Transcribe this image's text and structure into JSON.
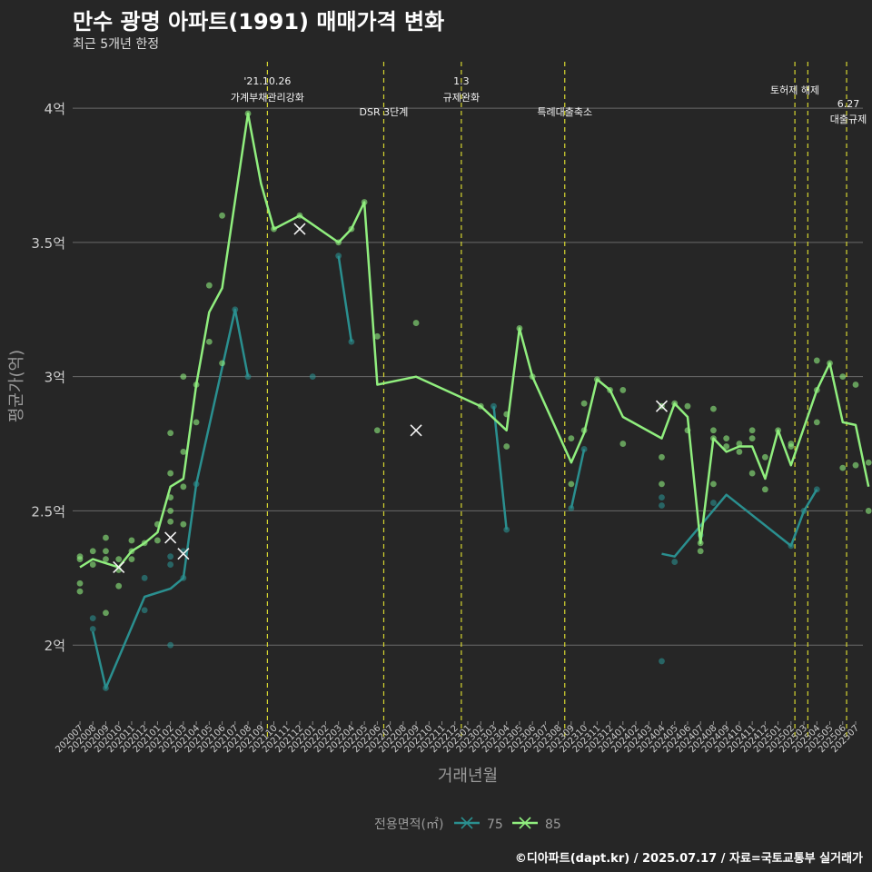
{
  "title": "만수 광명 아파트(1991) 매매가격 변화",
  "subtitle": "최근 5개년 한정",
  "caption": "©디아파트(dapt.kr) / 2025.07.17 / 자료=국토교통부 실거래가",
  "chart_data": {
    "type": "line",
    "xlabel": "거래년월",
    "ylabel": "평균가(억)",
    "legend_title": "전용면적(㎡)",
    "legend_position": "bottom",
    "ylim": [
      1.73,
      4.2
    ],
    "yticks": [
      2,
      2.5,
      3,
      3.5,
      4
    ],
    "ytick_labels": [
      "2억",
      "2.5억",
      "3억",
      "3.5억",
      "4억"
    ],
    "categories": [
      "202007",
      "202008",
      "202009",
      "202010",
      "202011",
      "202012",
      "202101",
      "202102",
      "202103",
      "202104",
      "202105",
      "202106",
      "202107",
      "202108",
      "202109",
      "202110",
      "202111",
      "202112",
      "202201",
      "202202",
      "202203",
      "202204",
      "202205",
      "202206",
      "202207",
      "202208",
      "202209",
      "202210",
      "202211",
      "202212",
      "202301",
      "202302",
      "202303",
      "202304",
      "202305",
      "202306",
      "202307",
      "202308",
      "202309",
      "202310",
      "202311",
      "202312",
      "202401",
      "202402",
      "202403",
      "202404",
      "202405",
      "202406",
      "202407",
      "202408",
      "202409",
      "202410",
      "202411",
      "202412",
      "202501",
      "202502",
      "202503",
      "202504",
      "202505",
      "202506",
      "202507"
    ],
    "series": [
      {
        "name": "75",
        "color": "#2a8f8f",
        "line": [
          [
            [
              1,
              2.05
            ],
            [
              2,
              1.84
            ],
            [
              5,
              2.18
            ],
            [
              7,
              2.21
            ],
            [
              8,
              2.25
            ],
            [
              9,
              2.6
            ],
            [
              12,
              3.25
            ],
            [
              13,
              3.0
            ]
          ],
          [
            [
              20,
              3.45
            ],
            [
              21,
              3.13
            ]
          ],
          [
            [
              32,
              2.89
            ],
            [
              33,
              2.43
            ]
          ],
          [
            [
              38,
              2.51
            ],
            [
              39,
              2.73
            ]
          ],
          [
            [
              45,
              2.34
            ],
            [
              46,
              2.33
            ],
            [
              50,
              2.56
            ],
            [
              55,
              2.37
            ],
            [
              56,
              2.5
            ],
            [
              57,
              2.58
            ]
          ]
        ],
        "points": [
          [
            1,
            2.1
          ],
          [
            1,
            2.06
          ],
          [
            2,
            1.84
          ],
          [
            5,
            2.25
          ],
          [
            5,
            2.13
          ],
          [
            7,
            2.33
          ],
          [
            7,
            2.3
          ],
          [
            7,
            2.0
          ],
          [
            8,
            2.25
          ],
          [
            8,
            2.35
          ],
          [
            9,
            2.6
          ],
          [
            12,
            3.25
          ],
          [
            13,
            3.0
          ],
          [
            18,
            3.0
          ],
          [
            20,
            3.45
          ],
          [
            21,
            3.13
          ],
          [
            32,
            2.89
          ],
          [
            33,
            2.43
          ],
          [
            38,
            2.51
          ],
          [
            39,
            2.73
          ],
          [
            45,
            2.55
          ],
          [
            45,
            2.52
          ],
          [
            45,
            1.94
          ],
          [
            46,
            2.31
          ],
          [
            48,
            2.41
          ],
          [
            49,
            2.53
          ],
          [
            55,
            2.37
          ],
          [
            56,
            2.5
          ],
          [
            57,
            2.58
          ]
        ],
        "markers": [
          [
            8,
            2.34
          ]
        ]
      },
      {
        "name": "85",
        "color": "#90ee7e",
        "line": [
          [
            [
              0,
              2.29
            ],
            [
              1,
              2.32
            ],
            [
              3,
              2.29
            ],
            [
              4,
              2.35
            ],
            [
              5,
              2.38
            ],
            [
              6,
              2.42
            ],
            [
              7,
              2.59
            ],
            [
              8,
              2.62
            ],
            [
              9,
              2.97
            ],
            [
              10,
              3.24
            ],
            [
              11,
              3.33
            ],
            [
              13,
              3.98
            ],
            [
              14,
              3.72
            ],
            [
              15,
              3.55
            ],
            [
              17,
              3.6
            ],
            [
              20,
              3.5
            ],
            [
              21,
              3.55
            ],
            [
              22,
              3.65
            ],
            [
              23,
              2.97
            ],
            [
              26,
              3.0
            ],
            [
              31,
              2.89
            ],
            [
              33,
              2.8
            ],
            [
              34,
              3.18
            ],
            [
              35,
              3.0
            ],
            [
              38,
              2.68
            ],
            [
              39,
              2.79
            ],
            [
              40,
              2.99
            ],
            [
              41,
              2.95
            ],
            [
              42,
              2.85
            ],
            [
              45,
              2.77
            ],
            [
              46,
              2.9
            ],
            [
              47,
              2.85
            ],
            [
              48,
              2.38
            ],
            [
              49,
              2.77
            ],
            [
              50,
              2.72
            ],
            [
              51,
              2.74
            ],
            [
              52,
              2.74
            ],
            [
              53,
              2.62
            ],
            [
              54,
              2.8
            ],
            [
              55,
              2.67
            ],
            [
              57,
              2.95
            ],
            [
              58,
              3.05
            ],
            [
              59,
              2.83
            ],
            [
              60,
              2.82
            ],
            [
              61,
              2.59
            ]
          ]
        ],
        "points": [
          [
            0,
            2.32
          ],
          [
            0,
            2.33
          ],
          [
            0,
            2.23
          ],
          [
            0,
            2.2
          ],
          [
            1,
            2.35
          ],
          [
            1,
            2.3
          ],
          [
            2,
            2.4
          ],
          [
            2,
            2.35
          ],
          [
            2,
            2.32
          ],
          [
            2,
            2.12
          ],
          [
            3,
            2.32
          ],
          [
            3,
            2.28
          ],
          [
            3,
            2.22
          ],
          [
            4,
            2.39
          ],
          [
            4,
            2.35
          ],
          [
            4,
            2.32
          ],
          [
            5,
            2.38
          ],
          [
            6,
            2.45
          ],
          [
            6,
            2.39
          ],
          [
            7,
            2.79
          ],
          [
            7,
            2.64
          ],
          [
            7,
            2.55
          ],
          [
            7,
            2.5
          ],
          [
            7,
            2.46
          ],
          [
            8,
            3.0
          ],
          [
            8,
            2.72
          ],
          [
            8,
            2.59
          ],
          [
            8,
            2.45
          ],
          [
            9,
            2.97
          ],
          [
            9,
            2.83
          ],
          [
            10,
            3.34
          ],
          [
            10,
            3.13
          ],
          [
            11,
            3.6
          ],
          [
            11,
            3.05
          ],
          [
            13,
            3.98
          ],
          [
            15,
            3.55
          ],
          [
            17,
            3.6
          ],
          [
            20,
            3.5
          ],
          [
            21,
            3.55
          ],
          [
            22,
            3.65
          ],
          [
            23,
            3.15
          ],
          [
            23,
            2.8
          ],
          [
            26,
            3.2
          ],
          [
            31,
            2.89
          ],
          [
            33,
            2.86
          ],
          [
            33,
            2.74
          ],
          [
            34,
            3.18
          ],
          [
            35,
            3.0
          ],
          [
            38,
            2.77
          ],
          [
            38,
            2.6
          ],
          [
            39,
            2.9
          ],
          [
            39,
            2.8
          ],
          [
            40,
            2.99
          ],
          [
            41,
            2.95
          ],
          [
            42,
            2.95
          ],
          [
            42,
            2.75
          ],
          [
            45,
            2.89
          ],
          [
            45,
            2.7
          ],
          [
            45,
            2.6
          ],
          [
            46,
            2.9
          ],
          [
            47,
            2.89
          ],
          [
            47,
            2.8
          ],
          [
            48,
            2.38
          ],
          [
            48,
            2.35
          ],
          [
            49,
            2.88
          ],
          [
            49,
            2.8
          ],
          [
            49,
            2.77
          ],
          [
            49,
            2.6
          ],
          [
            50,
            2.77
          ],
          [
            50,
            2.74
          ],
          [
            51,
            2.75
          ],
          [
            51,
            2.72
          ],
          [
            52,
            2.8
          ],
          [
            52,
            2.77
          ],
          [
            52,
            2.64
          ],
          [
            53,
            2.7
          ],
          [
            53,
            2.58
          ],
          [
            54,
            2.8
          ],
          [
            55,
            2.75
          ],
          [
            55,
            2.74
          ],
          [
            57,
            3.06
          ],
          [
            57,
            2.95
          ],
          [
            57,
            2.83
          ],
          [
            58,
            3.05
          ],
          [
            59,
            3.0
          ],
          [
            59,
            2.66
          ],
          [
            60,
            2.97
          ],
          [
            60,
            2.67
          ],
          [
            61,
            2.68
          ],
          [
            61,
            2.5
          ]
        ],
        "markers": [
          [
            3,
            2.29
          ],
          [
            7,
            2.4
          ],
          [
            17,
            3.55
          ],
          [
            26,
            2.8
          ],
          [
            45,
            2.89
          ]
        ]
      }
    ],
    "annotations": [
      {
        "x": 14.5,
        "lines": [
          "'21.10.26",
          "가계부채관리강화"
        ]
      },
      {
        "x": 23.5,
        "lines": [
          "DSR 3단계"
        ]
      },
      {
        "x": 29.5,
        "lines": [
          "1.3",
          "규제완화"
        ]
      },
      {
        "x": 37.5,
        "lines": [
          "특례대출축소"
        ]
      },
      {
        "x": 55.3,
        "lines": [
          "토허제 해제"
        ]
      },
      {
        "x": 56.3,
        "lines": []
      },
      {
        "x": 59.3,
        "lines": [
          "6.27",
          "대출규제"
        ]
      }
    ]
  }
}
